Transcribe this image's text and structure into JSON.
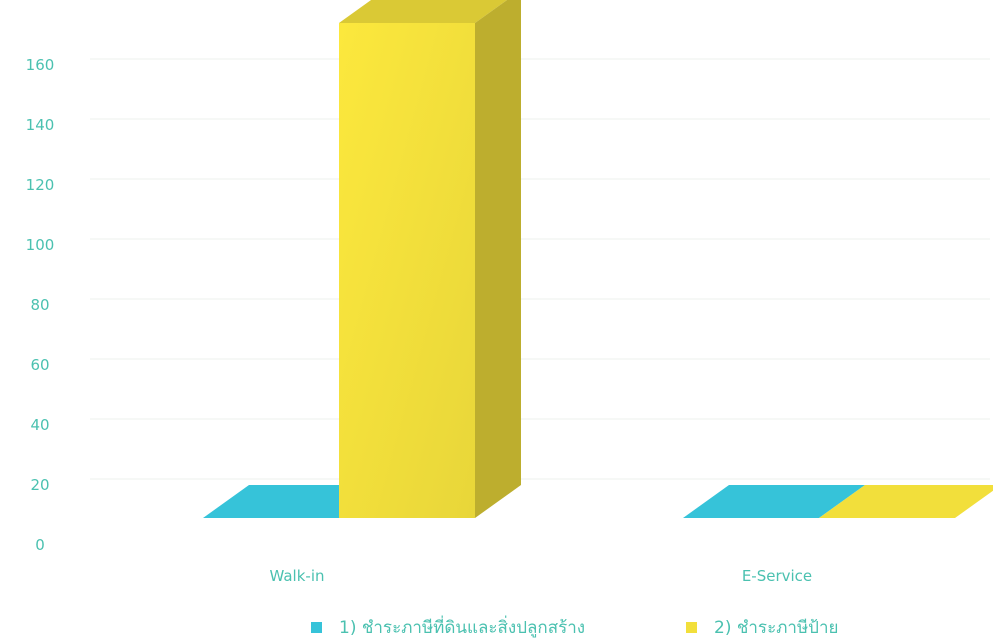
{
  "chart_data": {
    "type": "bar",
    "categories": [
      "Walk-in",
      "E-Service"
    ],
    "series": [
      {
        "name": "1) ชำระภาษีที่ดินและสิ่งปลูกสร้าง",
        "values": [
          0,
          0
        ],
        "color": "#36c3d9"
      },
      {
        "name": "2) ชำระภาษีป้าย",
        "values": [
          165,
          0
        ],
        "color": "#f2df3b"
      }
    ],
    "y_ticks": [
      "0",
      "20",
      "40",
      "60",
      "80",
      "100",
      "120",
      "140",
      "160"
    ],
    "ylim": [
      0,
      170
    ],
    "grid": true,
    "legend_position": "bottom",
    "style": "3d",
    "title": "",
    "xlabel": "",
    "ylabel": ""
  }
}
